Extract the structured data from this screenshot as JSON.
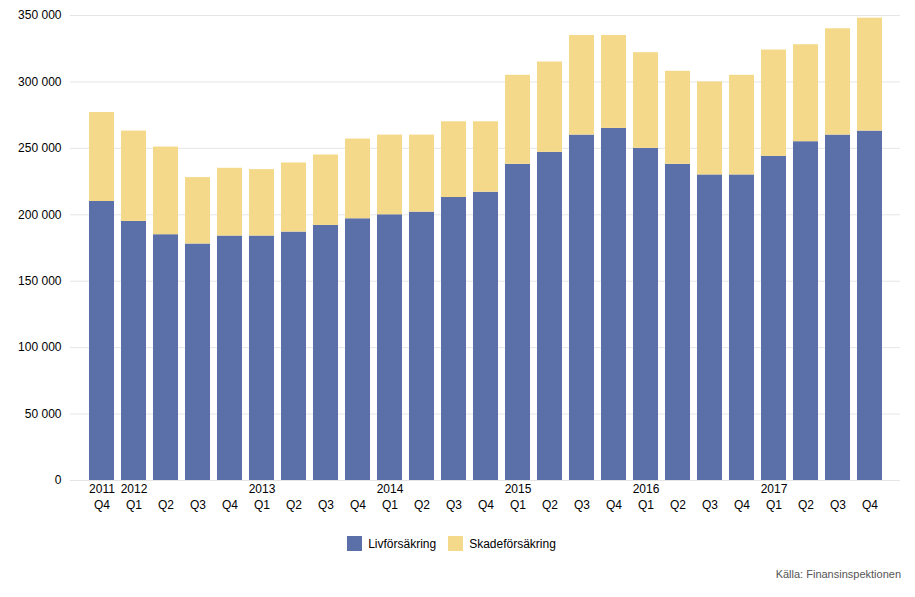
{
  "chart_data": {
    "type": "bar",
    "stacked": true,
    "categories": [
      "Q4",
      "Q1",
      "Q2",
      "Q3",
      "Q4",
      "Q1",
      "Q2",
      "Q3",
      "Q4",
      "Q1",
      "Q2",
      "Q3",
      "Q4",
      "Q1",
      "Q2",
      "Q3",
      "Q4",
      "Q1",
      "Q2",
      "Q3",
      "Q4",
      "Q1",
      "Q2",
      "Q3",
      "Q4"
    ],
    "year_labels": [
      "2011",
      "2012",
      null,
      null,
      null,
      "2013",
      null,
      null,
      null,
      "2014",
      null,
      null,
      null,
      "2015",
      null,
      null,
      null,
      "2016",
      null,
      null,
      null,
      "2017",
      null,
      null,
      null
    ],
    "series": [
      {
        "name": "Livförsäkring",
        "color": "#5b6fa8",
        "values": [
          210000,
          195000,
          185000,
          178000,
          184000,
          184000,
          187000,
          192000,
          197000,
          200000,
          202000,
          213000,
          217000,
          238000,
          247000,
          260000,
          265000,
          250000,
          238000,
          230000,
          230000,
          244000,
          255000,
          260000,
          263000
        ]
      },
      {
        "name": "Skadeförsäkring",
        "color": "#f5d98b",
        "values": [
          67000,
          68000,
          66000,
          50000,
          51000,
          50000,
          52000,
          53000,
          60000,
          60000,
          58000,
          57000,
          53000,
          67000,
          68000,
          75000,
          70000,
          72000,
          70000,
          70000,
          75000,
          80000,
          73000,
          80000,
          85000
        ]
      }
    ],
    "ylim": [
      0,
      350000
    ],
    "yticks": [
      0,
      {
        "value": 50000,
        "label": "50 000"
      },
      {
        "value": 100000,
        "label": "100 000"
      },
      {
        "value": 150000,
        "label": "150 000"
      },
      {
        "value": 200000,
        "label": "200 000"
      },
      {
        "value": 250000,
        "label": "250 000"
      },
      {
        "value": 300000,
        "label": "300 000"
      },
      {
        "value": 350000,
        "label": "350 000"
      }
    ],
    "grid": true,
    "legend": "bottom",
    "caption": "Källa: Finansinspektionen"
  }
}
